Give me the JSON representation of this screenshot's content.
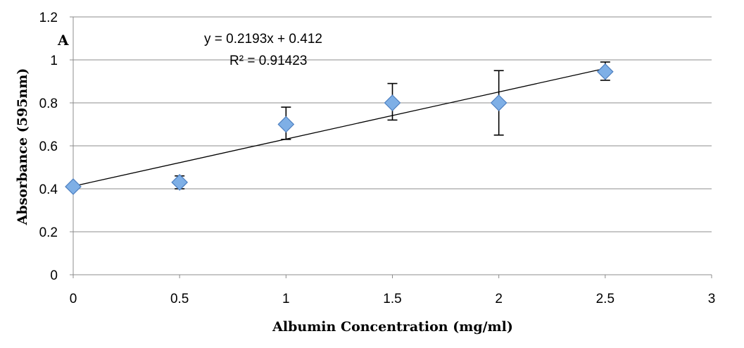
{
  "chart_data": {
    "type": "scatter",
    "panel_label": "A",
    "xlabel": "Albumin Concentration (mg/ml)",
    "ylabel": "Absorbance (595nm)",
    "xlim": [
      0,
      3
    ],
    "ylim": [
      0,
      1.2
    ],
    "x_ticks": [
      "0",
      "0.5",
      "1",
      "1.5",
      "2",
      "2.5",
      "3"
    ],
    "y_ticks": [
      "0",
      "0.2",
      "0.4",
      "0.6",
      "0.8",
      "1",
      "1.2"
    ],
    "grid": "horizontal",
    "series": [
      {
        "name": "Absorbance",
        "marker": "diamond",
        "color": "#7eafe6",
        "points": [
          {
            "x": 0,
            "y": 0.41,
            "err_lo": 0.4,
            "err_hi": 0.42
          },
          {
            "x": 0.5,
            "y": 0.43,
            "err_lo": 0.4,
            "err_hi": 0.46
          },
          {
            "x": 1,
            "y": 0.7,
            "err_lo": 0.63,
            "err_hi": 0.78
          },
          {
            "x": 1.5,
            "y": 0.8,
            "err_lo": 0.72,
            "err_hi": 0.89
          },
          {
            "x": 2,
            "y": 0.8,
            "err_lo": 0.65,
            "err_hi": 0.95
          },
          {
            "x": 2.5,
            "y": 0.945,
            "err_lo": 0.905,
            "err_hi": 0.99
          }
        ]
      }
    ],
    "trendline": {
      "slope": 0.2193,
      "intercept": 0.412,
      "x_range": [
        0,
        2.5
      ],
      "equation": "y = 0.2193x + 0.412",
      "r_squared": "R² = 0.91423"
    }
  }
}
